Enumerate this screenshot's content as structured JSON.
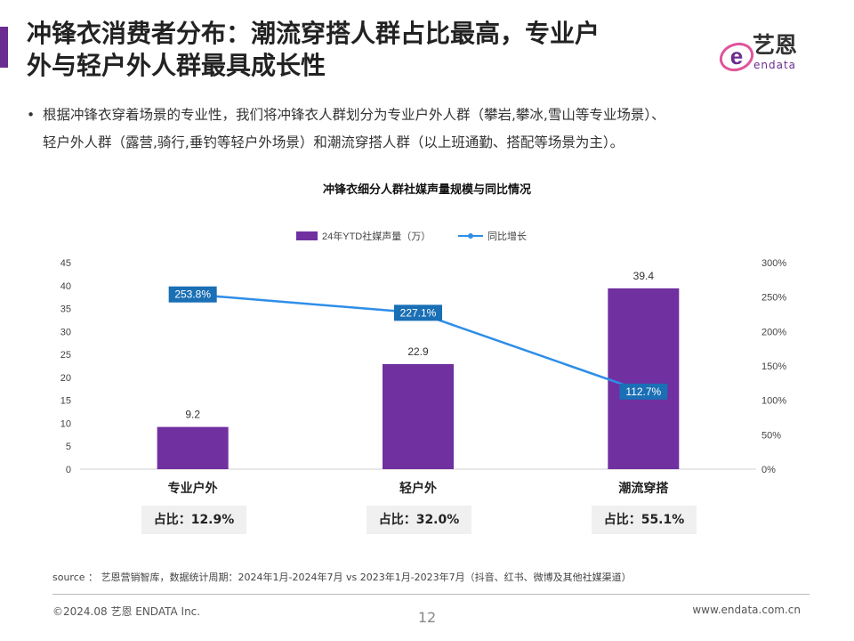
{
  "header": {
    "title_line1": "冲锋衣消费者分布：潮流穿搭人群占比最高，专业户",
    "title_line2": "外与轻户外人群最具成长性",
    "logo_text": "艺恩",
    "logo_sub": "endata",
    "brand_color": "#6b2c91"
  },
  "bullet": {
    "dot": "•",
    "line1": "根据冲锋衣穿着场景的专业性，我们将冲锋衣人群划分为专业户外人群（攀岩,攀冰,雪山等专业场景）、",
    "line2": "轻户外人群（露营,骑行,垂钓等轻户外场景）和潮流穿搭人群（以上班通勤、搭配等场景为主）。"
  },
  "chart_data": {
    "type": "bar",
    "title": "冲锋衣细分人群社媒声量规模与同比情况",
    "categories": [
      "专业户外",
      "轻户外",
      "潮流穿搭"
    ],
    "series": [
      {
        "name": "24年YTD社媒声量（万）",
        "type": "bar",
        "axis": "left",
        "values": [
          9.2,
          22.9,
          39.4
        ],
        "labels": [
          "9.2",
          "22.9",
          "39.4"
        ],
        "color": "#7030a0"
      },
      {
        "name": "同比增长",
        "type": "line",
        "axis": "right",
        "values": [
          253.8,
          227.1,
          112.7
        ],
        "labels": [
          "253.8%",
          "227.1%",
          "112.7%"
        ],
        "color": "#2e8ee8",
        "label_bg": "#1a6fb5"
      }
    ],
    "left_axis": {
      "ylim": [
        0,
        45
      ],
      "ticks": [
        "0",
        "5",
        "10",
        "15",
        "20",
        "25",
        "30",
        "35",
        "40",
        "45"
      ]
    },
    "right_axis": {
      "ylim": [
        0,
        300
      ],
      "ticks": [
        "0%",
        "50%",
        "100%",
        "150%",
        "200%",
        "250%",
        "300%"
      ]
    },
    "legend_position": "top"
  },
  "shares": [
    "占比：12.9%",
    "占比：32.0%",
    "占比：55.1%"
  ],
  "source": "source ：  艺恩营销智库，数据统计周期：2024年1月-2024年7月 vs 2023年1月-2023年7月（抖音、红书、微博及其他社媒渠道）",
  "footer": {
    "left": "©2024.08  艺恩 ENDATA Inc.",
    "page": "12",
    "right": "www.endata.com.cn"
  }
}
